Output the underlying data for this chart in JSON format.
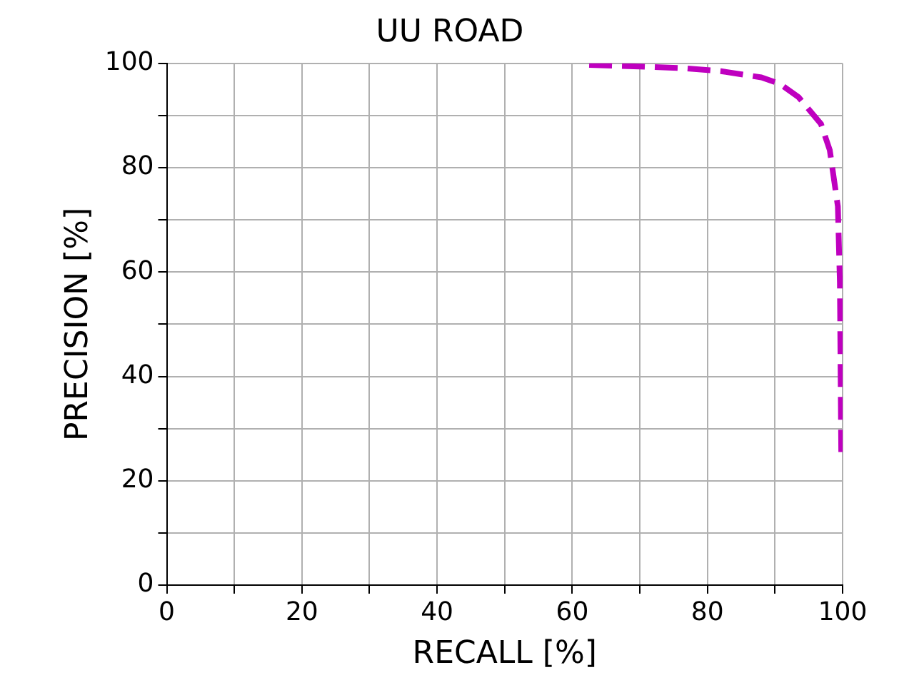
{
  "chart_data": {
    "type": "line",
    "title": "UU ROAD",
    "xlabel": "RECALL [%]",
    "ylabel": "PRECISION [%]",
    "series": [
      {
        "color": "#bf00bf",
        "x": [
          62.5,
          70,
          76.2,
          82,
          88,
          90.7,
          93.5,
          96.8,
          98.1,
          99.3,
          99.6,
          99.8
        ],
        "values": [
          99.7,
          99.4,
          99.1,
          98.5,
          97.3,
          96.1,
          93.5,
          88.4,
          83.4,
          72.6,
          58,
          25.5
        ]
      }
    ],
    "xlim": [
      0,
      100
    ],
    "ylim": [
      0,
      100
    ],
    "xticks": [
      0,
      {
        "value": 10,
        "label": null
      },
      20,
      {
        "value": 30,
        "label": null
      },
      40,
      {
        "value": 50,
        "label": null
      },
      60,
      {
        "value": 70,
        "label": null
      },
      80,
      {
        "value": 90,
        "label": null
      },
      100
    ],
    "yticks": [
      0,
      {
        "value": 10,
        "label": null
      },
      20,
      {
        "value": 30,
        "label": null
      },
      40,
      {
        "value": 50,
        "label": null
      },
      60,
      {
        "value": 70,
        "label": null
      },
      80,
      {
        "value": 90,
        "label": null
      },
      100
    ],
    "grid": true,
    "legend": false,
    "marker": "none",
    "line_style": "dashed"
  }
}
